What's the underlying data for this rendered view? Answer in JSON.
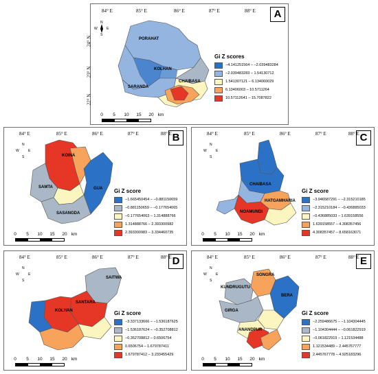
{
  "colors": {
    "class1": "#2b72c7",
    "class2": "#94b5e0",
    "class3": "#fbf6c0",
    "class4": "#f7a35c",
    "class5": "#e53626",
    "neutral": "#a9b7c7"
  },
  "north_arrow": {
    "n": "N",
    "e": "E",
    "s": "S",
    "w": "W"
  },
  "scale": {
    "ticks": [
      "0",
      "5",
      "10",
      "15",
      "20"
    ],
    "unit": "km"
  },
  "lon_labels": [
    "84° E",
    "85° E",
    "86° E",
    "87° E",
    "88° E"
  ],
  "lat_labels": [
    "24° N",
    "23° N",
    "22° N"
  ],
  "panels": [
    {
      "id": "A",
      "legend_title": "Gi Z scores",
      "legend": [
        "−4.141251564 – −2.039483284",
        "−2.039483283 – 1.54130712",
        "1.541307121 – 6.134060029",
        "6.13406003 – 10.5711264",
        "10.57112641 – 15.7087822"
      ],
      "regions": [
        "PORAHAT",
        "KOLHAN",
        "SARANDA",
        "CHAIBASA"
      ]
    },
    {
      "id": "B",
      "legend_title": "Gi Z score",
      "legend": [
        "−1.665450454 – −0.881150659",
        "−0.881150659 – −0.177654065",
        "−0.177654063 – 1.314888766",
        "1.314888766 – 2.393300982",
        "2.393300983 – 3.334460735"
      ],
      "regions": [
        "KOINA",
        "SAMTA",
        "GUA",
        "SASANGDA"
      ]
    },
    {
      "id": "C",
      "legend_title": "Gi Z score",
      "legend": [
        "−3.946587291 – −2.315210185",
        "−2.315210184 – −0.436885033",
        "−0.436885033 – 1.639158556",
        "1.639158557 – 4.308357456",
        "4.308357457 – 8.658163071"
      ],
      "regions": [
        "CHAIBASA",
        "HATGAMHARIA",
        "NOAMUNDI"
      ]
    },
    {
      "id": "D",
      "legend_title": "Gi Z score",
      "legend": [
        "−3.337133666 – −1.536187625",
        "−1.536187624 – −0.352708812",
        "−0.352708812 – 0.6506754",
        "0.6506754 – 1.679787411",
        "1.679787412 – 3.233455429"
      ],
      "regions": [
        "SAITWA",
        "SANTARA",
        "KOLHAN"
      ]
    },
    {
      "id": "E",
      "legend_title": "Gi Z score",
      "legend": [
        "−2.259486675 – −1.104304445",
        "−1.104304444 – −0.061822919",
        "−0.061822919 – 1.121534488",
        "1.121534489 – 2.445767777",
        "2.445767778 – 4.925183296"
      ],
      "regions": [
        "KUNDRUGUTU",
        "SONGRA",
        "BERA",
        "GIRGA",
        "ANANDPUR"
      ]
    }
  ]
}
